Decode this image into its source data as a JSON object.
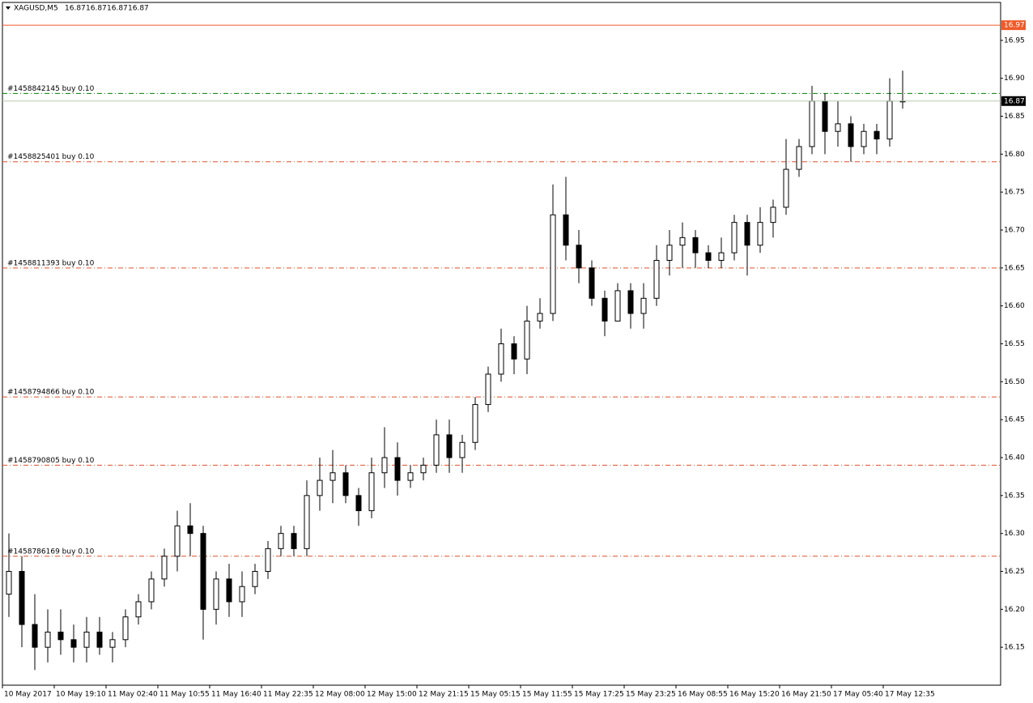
{
  "chart_data": {
    "type": "candlestick",
    "title": "XAGUSD,M5",
    "quote": [
      16.87,
      16.87,
      16.87,
      16.87
    ],
    "ylim": [
      16.1,
      17.0
    ],
    "yticks": [
      {
        "value": 16.15,
        "label": "16.15"
      },
      {
        "value": 16.2,
        "label": "16.20"
      },
      {
        "value": 16.25,
        "label": "16.25"
      },
      {
        "value": 16.3,
        "label": "16.30"
      },
      {
        "value": 16.35,
        "label": "16.35"
      },
      {
        "value": 16.4,
        "label": "16.40"
      },
      {
        "value": 16.45,
        "label": "16.45"
      },
      {
        "value": 16.5,
        "label": "16.50"
      },
      {
        "value": 16.55,
        "label": "16.55"
      },
      {
        "value": 16.6,
        "label": "16.60"
      },
      {
        "value": 16.65,
        "label": "16.65"
      },
      {
        "value": 16.7,
        "label": "16.70"
      },
      {
        "value": 16.75,
        "label": "16.75"
      },
      {
        "value": 16.8,
        "label": "16.80"
      },
      {
        "value": 16.85,
        "label": "16.85"
      },
      {
        "value": 16.9,
        "label": "16.90"
      },
      {
        "value": 16.95,
        "label": "16.95"
      }
    ],
    "xlim": [
      0,
      70
    ],
    "xticks": [
      {
        "value": 0,
        "label": "10 May 2017"
      },
      {
        "value": 4,
        "label": "10 May 19:10"
      },
      {
        "value": 8,
        "label": "11 May 02:40"
      },
      {
        "value": 12,
        "label": "11 May 10:55"
      },
      {
        "value": 16,
        "label": "11 May 16:40"
      },
      {
        "value": 20,
        "label": "11 May 22:35"
      },
      {
        "value": 24,
        "label": "12 May 08:00"
      },
      {
        "value": 28,
        "label": "12 May 15:00"
      },
      {
        "value": 32,
        "label": "12 May 21:15"
      },
      {
        "value": 36,
        "label": "15 May 05:15"
      },
      {
        "value": 40,
        "label": "15 May 11:55"
      },
      {
        "value": 44,
        "label": "15 May 17:25"
      },
      {
        "value": 48,
        "label": "15 May 23:25"
      },
      {
        "value": 52,
        "label": "16 May 08:55"
      },
      {
        "value": 56,
        "label": "16 May 15:20"
      },
      {
        "value": 60,
        "label": "16 May 21:50"
      },
      {
        "value": 64,
        "label": "17 May 05:40"
      },
      {
        "value": 68,
        "label": "17 May 12:35"
      }
    ],
    "open": [
      16.22,
      16.25,
      16.18,
      16.15,
      16.17,
      16.16,
      16.15,
      16.17,
      16.15,
      16.16,
      16.19,
      16.21,
      16.24,
      16.27,
      16.31,
      16.3,
      16.2,
      16.24,
      16.21,
      16.23,
      16.25,
      16.28,
      16.3,
      16.28,
      16.35,
      16.37,
      16.38,
      16.35,
      16.33,
      16.38,
      16.4,
      16.37,
      16.38,
      16.39,
      16.43,
      16.4,
      16.42,
      16.47,
      16.51,
      16.55,
      16.53,
      16.58,
      16.59,
      16.72,
      16.68,
      16.65,
      16.61,
      16.58,
      16.62,
      16.59,
      16.61,
      16.66,
      16.68,
      16.69,
      16.67,
      16.66,
      16.67,
      16.71,
      16.68,
      16.71,
      16.73,
      16.78,
      16.81,
      16.87,
      16.83,
      16.84,
      16.81,
      16.83,
      16.82,
      16.87
    ],
    "high": [
      16.3,
      16.27,
      16.22,
      16.2,
      16.2,
      16.18,
      16.19,
      16.19,
      16.17,
      16.2,
      16.22,
      16.25,
      16.28,
      16.33,
      16.34,
      16.31,
      16.25,
      16.26,
      16.25,
      16.26,
      16.29,
      16.31,
      16.31,
      16.37,
      16.4,
      16.41,
      16.39,
      16.36,
      16.4,
      16.44,
      16.42,
      16.39,
      16.4,
      16.45,
      16.45,
      16.43,
      16.48,
      16.52,
      16.57,
      16.56,
      16.6,
      16.61,
      16.76,
      16.77,
      16.7,
      16.66,
      16.62,
      16.63,
      16.63,
      16.63,
      16.68,
      16.7,
      16.71,
      16.7,
      16.68,
      16.69,
      16.72,
      16.72,
      16.73,
      16.74,
      16.82,
      16.82,
      16.89,
      16.88,
      16.87,
      16.85,
      16.84,
      16.84,
      16.9,
      16.91
    ],
    "low": [
      16.19,
      16.15,
      16.12,
      16.13,
      16.14,
      16.13,
      16.13,
      16.14,
      16.13,
      16.15,
      16.18,
      16.2,
      16.23,
      16.25,
      16.27,
      16.16,
      16.18,
      16.19,
      16.19,
      16.22,
      16.24,
      16.27,
      16.27,
      16.27,
      16.33,
      16.34,
      16.34,
      16.31,
      16.32,
      16.36,
      16.35,
      16.36,
      16.37,
      16.38,
      16.38,
      16.38,
      16.41,
      16.46,
      16.5,
      16.51,
      16.51,
      16.57,
      16.58,
      16.66,
      16.63,
      16.6,
      16.56,
      16.58,
      16.57,
      16.57,
      16.6,
      16.64,
      16.65,
      16.65,
      16.65,
      16.65,
      16.66,
      16.64,
      16.67,
      16.69,
      16.72,
      16.77,
      16.8,
      16.8,
      16.81,
      16.79,
      16.8,
      16.8,
      16.81,
      16.86
    ],
    "close": [
      16.25,
      16.18,
      16.15,
      16.17,
      16.16,
      16.15,
      16.17,
      16.15,
      16.16,
      16.19,
      16.21,
      16.24,
      16.27,
      16.31,
      16.3,
      16.2,
      16.24,
      16.21,
      16.23,
      16.25,
      16.28,
      16.3,
      16.28,
      16.35,
      16.37,
      16.38,
      16.35,
      16.33,
      16.38,
      16.4,
      16.37,
      16.38,
      16.39,
      16.43,
      16.4,
      16.42,
      16.47,
      16.51,
      16.55,
      16.53,
      16.58,
      16.59,
      16.72,
      16.68,
      16.65,
      16.61,
      16.58,
      16.62,
      16.59,
      16.61,
      16.66,
      16.68,
      16.69,
      16.67,
      16.66,
      16.67,
      16.71,
      16.68,
      16.71,
      16.73,
      16.78,
      16.81,
      16.87,
      16.83,
      16.84,
      16.81,
      16.83,
      16.82,
      16.87,
      16.87
    ],
    "levels": [
      {
        "label": "#1458842145 buy 0.10",
        "value": 16.88,
        "color": "#008000"
      },
      {
        "label": "#1458825401 buy 0.10",
        "value": 16.79,
        "color": "#e0502a"
      },
      {
        "label": "#1458811393 buy 0.10",
        "value": 16.65,
        "color": "#e0502a"
      },
      {
        "label": "#1458794866 buy 0.10",
        "value": 16.48,
        "color": "#e0502a"
      },
      {
        "label": "#1458790805 buy 0.10",
        "value": 16.39,
        "color": "#e0502a"
      },
      {
        "label": "#1458786169 buy 0.10",
        "value": 16.27,
        "color": "#e0502a"
      }
    ],
    "price_lines": [
      {
        "value": 16.97,
        "color": "#f05a28"
      },
      {
        "value": 16.87,
        "color": "#000000"
      }
    ]
  }
}
